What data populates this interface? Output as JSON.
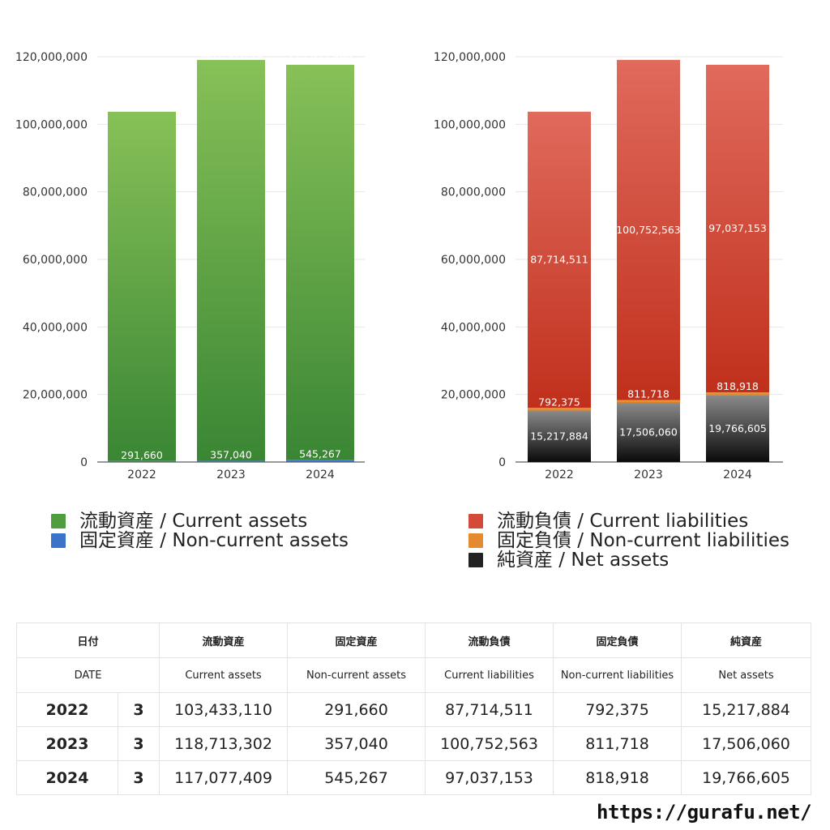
{
  "chart_data": [
    {
      "type": "bar",
      "stacked": true,
      "categories": [
        "2022",
        "2023",
        "2024"
      ],
      "ylim": [
        0,
        120000000
      ],
      "yticks": [
        "0",
        "20,000,000",
        "40,000,000",
        "60,000,000",
        "80,000,000",
        "100,000,000",
        "120,000,000"
      ],
      "series": [
        {
          "name": "流動資産 / Current assets",
          "values": [
            103433110,
            118713302,
            117077409
          ],
          "labels": [
            "103,433,110",
            "118,713,302",
            "117,077,409"
          ],
          "color": "#4a9a3a",
          "gradient": [
            "#87c158",
            "#3a8634"
          ]
        },
        {
          "name": "固定資産 / Non-current assets",
          "values": [
            291660,
            357040,
            545267
          ],
          "labels": [
            "291,660",
            "357,040",
            "545,267"
          ],
          "color": "#3a73c9",
          "gradient": [
            "#4f86dd",
            "#2f63b8"
          ]
        }
      ]
    },
    {
      "type": "bar",
      "stacked": true,
      "categories": [
        "2022",
        "2023",
        "2024"
      ],
      "ylim": [
        0,
        120000000
      ],
      "yticks": [
        "0",
        "20,000,000",
        "40,000,000",
        "60,000,000",
        "80,000,000",
        "100,000,000",
        "120,000,000"
      ],
      "series": [
        {
          "name": "純資産 / Net assets",
          "values": [
            15217884,
            17506060,
            19766605
          ],
          "labels": [
            "15,217,884",
            "17,506,060",
            "19,766,605"
          ],
          "color": "#444444",
          "gradient": [
            "#8a8a8a",
            "#0a0a0a"
          ]
        },
        {
          "name": "固定負債 / Non-current liabilities",
          "values": [
            792375,
            811718,
            818918
          ],
          "labels": [
            "792,375",
            "811,718",
            "818,918"
          ],
          "color": "#e58a2e",
          "gradient": [
            "#f0a040",
            "#d97a20"
          ]
        },
        {
          "name": "流動負債 / Current liabilities",
          "values": [
            87714511,
            100752563,
            97037153
          ],
          "labels": [
            "87,714,511",
            "100,752,563",
            "97,037,153"
          ],
          "color": "#d44a38",
          "gradient": [
            "#e06a5c",
            "#c0301c"
          ]
        }
      ]
    }
  ],
  "legend_left": [
    {
      "label": "流動資産 / Current assets",
      "color": "#4f9d3e"
    },
    {
      "label": "固定資産 / Non-current assets",
      "color": "#3a73c9"
    }
  ],
  "legend_right": [
    {
      "label": "流動負債 / Current liabilities",
      "color": "#d44a38"
    },
    {
      "label": "固定負債 / Non-current liabilities",
      "color": "#e58a2e"
    },
    {
      "label": "純資産 / Net assets",
      "color": "#222222"
    }
  ],
  "table": {
    "header_jp": [
      "日付",
      "流動資産",
      "固定資産",
      "流動負債",
      "固定負債",
      "純資産"
    ],
    "header_en": [
      "DATE",
      "Current assets",
      "Non-current assets",
      "Current liabilities",
      "Non-current liabilities",
      "Net assets"
    ],
    "rows": [
      {
        "year": "2022",
        "month": "3",
        "cells": [
          "103,433,110",
          "291,660",
          "87,714,511",
          "792,375",
          "15,217,884"
        ]
      },
      {
        "year": "2023",
        "month": "3",
        "cells": [
          "118,713,302",
          "357,040",
          "100,752,563",
          "811,718",
          "17,506,060"
        ]
      },
      {
        "year": "2024",
        "month": "3",
        "cells": [
          "117,077,409",
          "545,267",
          "97,037,153",
          "818,918",
          "19,766,605"
        ]
      }
    ]
  },
  "site_url": "https://gurafu.net/"
}
